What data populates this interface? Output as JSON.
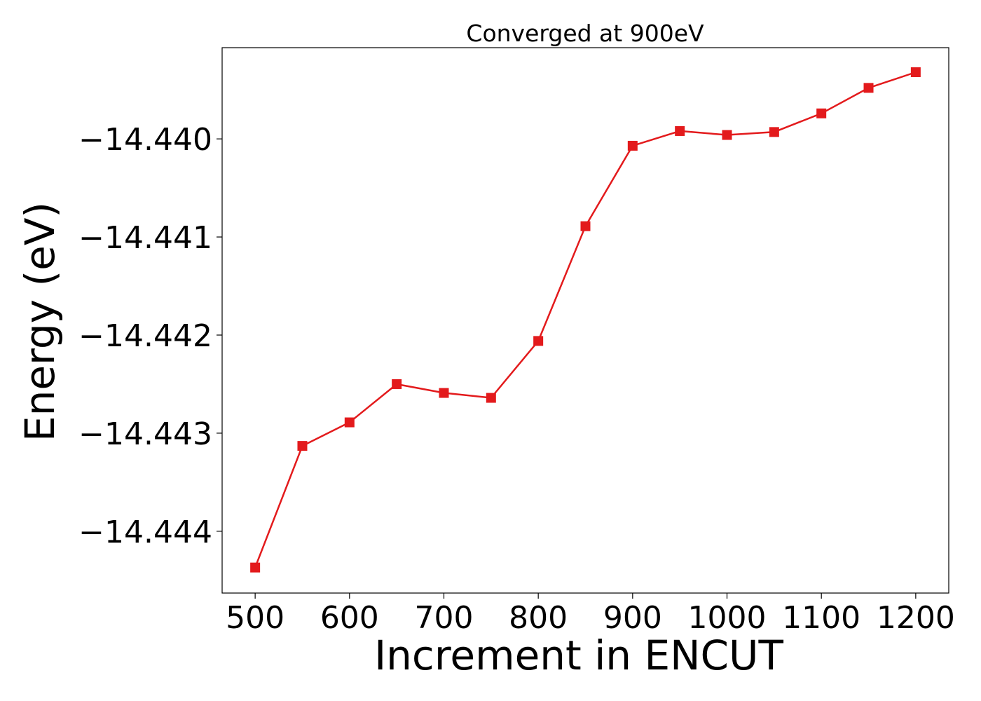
{
  "chart_data": {
    "type": "line",
    "title": "Converged at 900eV",
    "xlabel": "Increment in ENCUT",
    "ylabel": "Energy (eV)",
    "x": [
      500,
      550,
      600,
      650,
      700,
      750,
      800,
      850,
      900,
      950,
      1000,
      1050,
      1100,
      1150,
      1200
    ],
    "series": [
      {
        "values": [
          -14.44437,
          -14.44313,
          -14.44289,
          -14.4425,
          -14.44259,
          -14.44264,
          -14.44206,
          -14.44089,
          -14.44007,
          -14.43992,
          -14.43996,
          -14.43993,
          -14.43974,
          -14.43948,
          -14.43932
        ],
        "color": "#e31a1c",
        "marker": "square"
      }
    ],
    "xticks": [
      500,
      600,
      700,
      800,
      900,
      1000,
      1100,
      1200
    ],
    "xtick_labels": [
      "500",
      "600",
      "700",
      "800",
      "900",
      "1000",
      "1100",
      "1200"
    ],
    "yticks": [
      -14.444,
      -14.443,
      -14.442,
      -14.441,
      -14.44
    ],
    "ytick_labels": [
      "−14.444",
      "−14.443",
      "−14.442",
      "−14.441",
      "−14.440"
    ],
    "xlim": [
      465,
      1235
    ],
    "ylim": [
      -14.44463,
      -14.43907
    ],
    "grid": false,
    "legend": false
  }
}
